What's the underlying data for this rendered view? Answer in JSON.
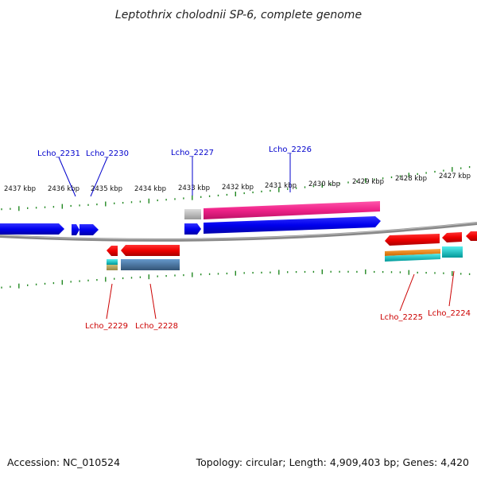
{
  "title": "Leptothrix cholodnii SP-6, complete genome",
  "footer": {
    "accession": "Accession: NC_010524",
    "summary": "Topology: circular; Length: 4,909,403 bp; Genes: 4,420"
  },
  "scale": {
    "unit": "kbp",
    "ticks": [
      {
        "kbp": 2437,
        "label": "2437 kbp"
      },
      {
        "kbp": 2436,
        "label": "2436 kbp"
      },
      {
        "kbp": 2435,
        "label": "2435 kbp"
      },
      {
        "kbp": 2434,
        "label": "2434 kbp"
      },
      {
        "kbp": 2433,
        "label": "2433 kbp"
      },
      {
        "kbp": 2432,
        "label": "2432 kbp"
      },
      {
        "kbp": 2431,
        "label": "2431 kbp"
      },
      {
        "kbp": 2430,
        "label": "2430 kbp"
      },
      {
        "kbp": 2429,
        "label": "2429 kbp"
      },
      {
        "kbp": 2428,
        "label": "2428 kbp"
      },
      {
        "kbp": 2427,
        "label": "2427 kbp"
      }
    ]
  },
  "colors": {
    "forward_label": "#0000cc",
    "reverse_label": "#cc0000",
    "backbone": "#808080",
    "ticks": "#228822",
    "cds_forward": "#0000ee",
    "cds_reverse": "#ee0000",
    "rna_pink": "#ee2288",
    "grey_feature": "#bbbbbb",
    "cyan_feature": "#11cccc",
    "orange_feature": "#ee8811",
    "steel_feature": "#4477aa",
    "tan_feature": "#bbaa66"
  },
  "gene_labels": [
    {
      "name": "Lcho_2231",
      "strand": "forward"
    },
    {
      "name": "Lcho_2230",
      "strand": "forward"
    },
    {
      "name": "Lcho_2227",
      "strand": "forward"
    },
    {
      "name": "Lcho_2226",
      "strand": "forward"
    },
    {
      "name": "Lcho_2229",
      "strand": "reverse"
    },
    {
      "name": "Lcho_2228",
      "strand": "reverse"
    },
    {
      "name": "Lcho_2225",
      "strand": "reverse"
    },
    {
      "name": "Lcho_2224",
      "strand": "reverse"
    }
  ]
}
